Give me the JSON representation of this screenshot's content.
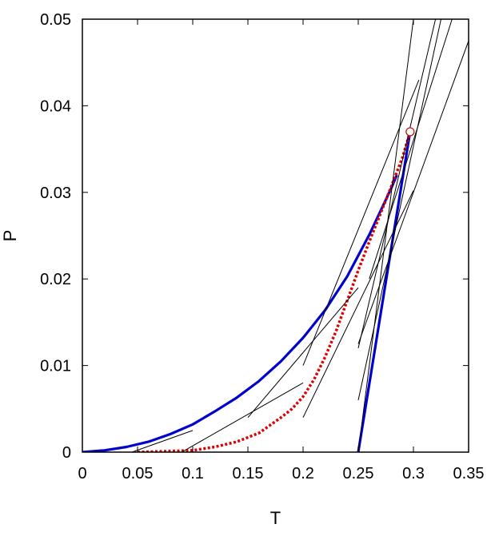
{
  "chart_data": {
    "type": "line",
    "title": "",
    "xlabel": "T",
    "ylabel": "P",
    "xlim": [
      0,
      0.35
    ],
    "ylim": [
      0,
      0.05
    ],
    "xticks": [
      0,
      0.05,
      0.1,
      0.15,
      0.2,
      0.25,
      0.3,
      0.35
    ],
    "yticks": [
      0,
      0.01,
      0.02,
      0.03,
      0.04,
      0.05
    ],
    "xtick_labels": [
      "0",
      "0.05",
      "0.1",
      "0.15",
      "0.2",
      "0.25",
      "0.3",
      "0.35"
    ],
    "ytick_labels": [
      "0",
      "0.01",
      "0.02",
      "0.03",
      "0.04",
      "0.05"
    ],
    "grid": false,
    "legend": "none",
    "series": [
      {
        "color": "#0000cc",
        "style": "solid-thick",
        "x": [
          0,
          0.02,
          0.04,
          0.06,
          0.08,
          0.1,
          0.12,
          0.14,
          0.16,
          0.18,
          0.2,
          0.22,
          0.24,
          0.26,
          0.28,
          0.285
        ],
        "y": [
          0,
          0.0002,
          0.0006,
          0.0012,
          0.0021,
          0.0032,
          0.0047,
          0.0063,
          0.0082,
          0.0105,
          0.0132,
          0.0164,
          0.0203,
          0.0251,
          0.0305,
          0.032
        ]
      },
      {
        "color": "#0000cc",
        "style": "solid-thick",
        "x": [
          0.25,
          0.297
        ],
        "y": [
          0,
          0.037
        ]
      },
      {
        "color": "#dd0000",
        "style": "dotted",
        "x": [
          0.05,
          0.1,
          0.12,
          0.14,
          0.16,
          0.18,
          0.19,
          0.2,
          0.21,
          0.22,
          0.23,
          0.24,
          0.25,
          0.26,
          0.27,
          0.28,
          0.29,
          0.297
        ],
        "y": [
          0,
          0.0002,
          0.0006,
          0.0012,
          0.0022,
          0.004,
          0.005,
          0.0064,
          0.0084,
          0.011,
          0.014,
          0.0175,
          0.021,
          0.0243,
          0.0275,
          0.0307,
          0.034,
          0.037
        ]
      },
      {
        "color": "#000000",
        "style": "solid-thin",
        "x": [
          0.045,
          0.1
        ],
        "y": [
          0,
          0.0025
        ]
      },
      {
        "color": "#000000",
        "style": "solid-thin",
        "x": [
          0.09,
          0.2
        ],
        "y": [
          0,
          0.008
        ]
      },
      {
        "color": "#000000",
        "style": "solid-thin",
        "x": [
          0.15,
          0.25
        ],
        "y": [
          0.004,
          0.019
        ]
      },
      {
        "color": "#000000",
        "style": "solid-thin",
        "x": [
          0.2,
          0.3
        ],
        "y": [
          0.004,
          0.0302
        ]
      },
      {
        "color": "#000000",
        "style": "solid-thin",
        "x": [
          0.2,
          0.305
        ],
        "y": [
          0.01,
          0.043
        ]
      },
      {
        "color": "#000000",
        "style": "solid-thin",
        "x": [
          0.25,
          0.325
        ],
        "y": [
          0.006,
          0.05
        ]
      },
      {
        "color": "#000000",
        "style": "solid-thin",
        "x": [
          0.25,
          0.32
        ],
        "y": [
          0.012,
          0.05
        ]
      },
      {
        "color": "#000000",
        "style": "solid-thin",
        "x": [
          0.26,
          0.335
        ],
        "y": [
          0.02,
          0.05
        ]
      },
      {
        "color": "#000000",
        "style": "solid-thin",
        "x": [
          0.25,
          0.35
        ],
        "y": [
          0.0125,
          0.0475
        ]
      },
      {
        "color": "#000000",
        "style": "solid-thin",
        "x": [
          0.25,
          0.3
        ],
        "y": [
          0,
          0.05
        ]
      }
    ],
    "annotations": [
      {
        "type": "open-circle",
        "x": 0.297,
        "y": 0.037,
        "color": "#cc0000"
      }
    ]
  }
}
